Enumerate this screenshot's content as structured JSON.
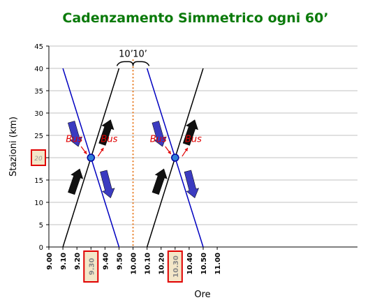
{
  "chart_data": {
    "type": "line",
    "title": "Cadenzamento Simmetrico ogni 60’",
    "title_color": "#0a7a0a",
    "xlabel": "Ore",
    "ylabel": "Stazioni (km)",
    "xlim": [
      9.0,
      11.0
    ],
    "ylim": [
      0,
      45
    ],
    "x_ticks": [
      {
        "value": 9.0,
        "label": "9.00"
      },
      {
        "value": 9.1,
        "label": "9.10"
      },
      {
        "value": 9.2,
        "label": "9.20"
      },
      {
        "value": 9.3,
        "label": "9.30",
        "boxed": true
      },
      {
        "value": 9.4,
        "label": "9.40"
      },
      {
        "value": 9.5,
        "label": "9.50"
      },
      {
        "value": 9.6,
        "label": "10.00"
      },
      {
        "value": 9.7,
        "label": "10.10"
      },
      {
        "value": 9.8,
        "label": "10.20"
      },
      {
        "value": 9.9,
        "label": "10.30",
        "boxed": true
      },
      {
        "value": 10.0,
        "label": "10.40"
      },
      {
        "value": 10.1,
        "label": "10.50"
      },
      {
        "value": 10.2,
        "label": "11.00"
      }
    ],
    "y_ticks": [
      0,
      5,
      10,
      15,
      20,
      25,
      30,
      35,
      40,
      45
    ],
    "y_boxed_tick_label": "20",
    "grid": true,
    "series": [
      {
        "color": "#000000",
        "points": [
          [
            9.1,
            0
          ],
          [
            9.5,
            40
          ]
        ]
      },
      {
        "color": "#0000c0",
        "points": [
          [
            9.1,
            40
          ],
          [
            9.5,
            0
          ]
        ]
      },
      {
        "color": "#000000",
        "points": [
          [
            9.7,
            0
          ],
          [
            10.1,
            40
          ]
        ]
      },
      {
        "color": "#0000c0",
        "points": [
          [
            9.7,
            40
          ],
          [
            10.1,
            0
          ]
        ]
      }
    ],
    "crossing_points": [
      [
        9.3,
        20
      ],
      [
        9.9,
        20
      ]
    ],
    "center_line": {
      "x": 9.6,
      "color": "#e87a20"
    },
    "brace_labels": [
      "10’",
      "10’"
    ],
    "annotations": [
      {
        "text": "Bus",
        "x": 9.18,
        "y": 23.5
      },
      {
        "text": "Bus",
        "x": 9.43,
        "y": 23.5
      },
      {
        "text": "Bus",
        "x": 9.78,
        "y": 23.5
      },
      {
        "text": "Bus",
        "x": 10.03,
        "y": 23.5
      }
    ],
    "annotation_color": "#e00000"
  }
}
